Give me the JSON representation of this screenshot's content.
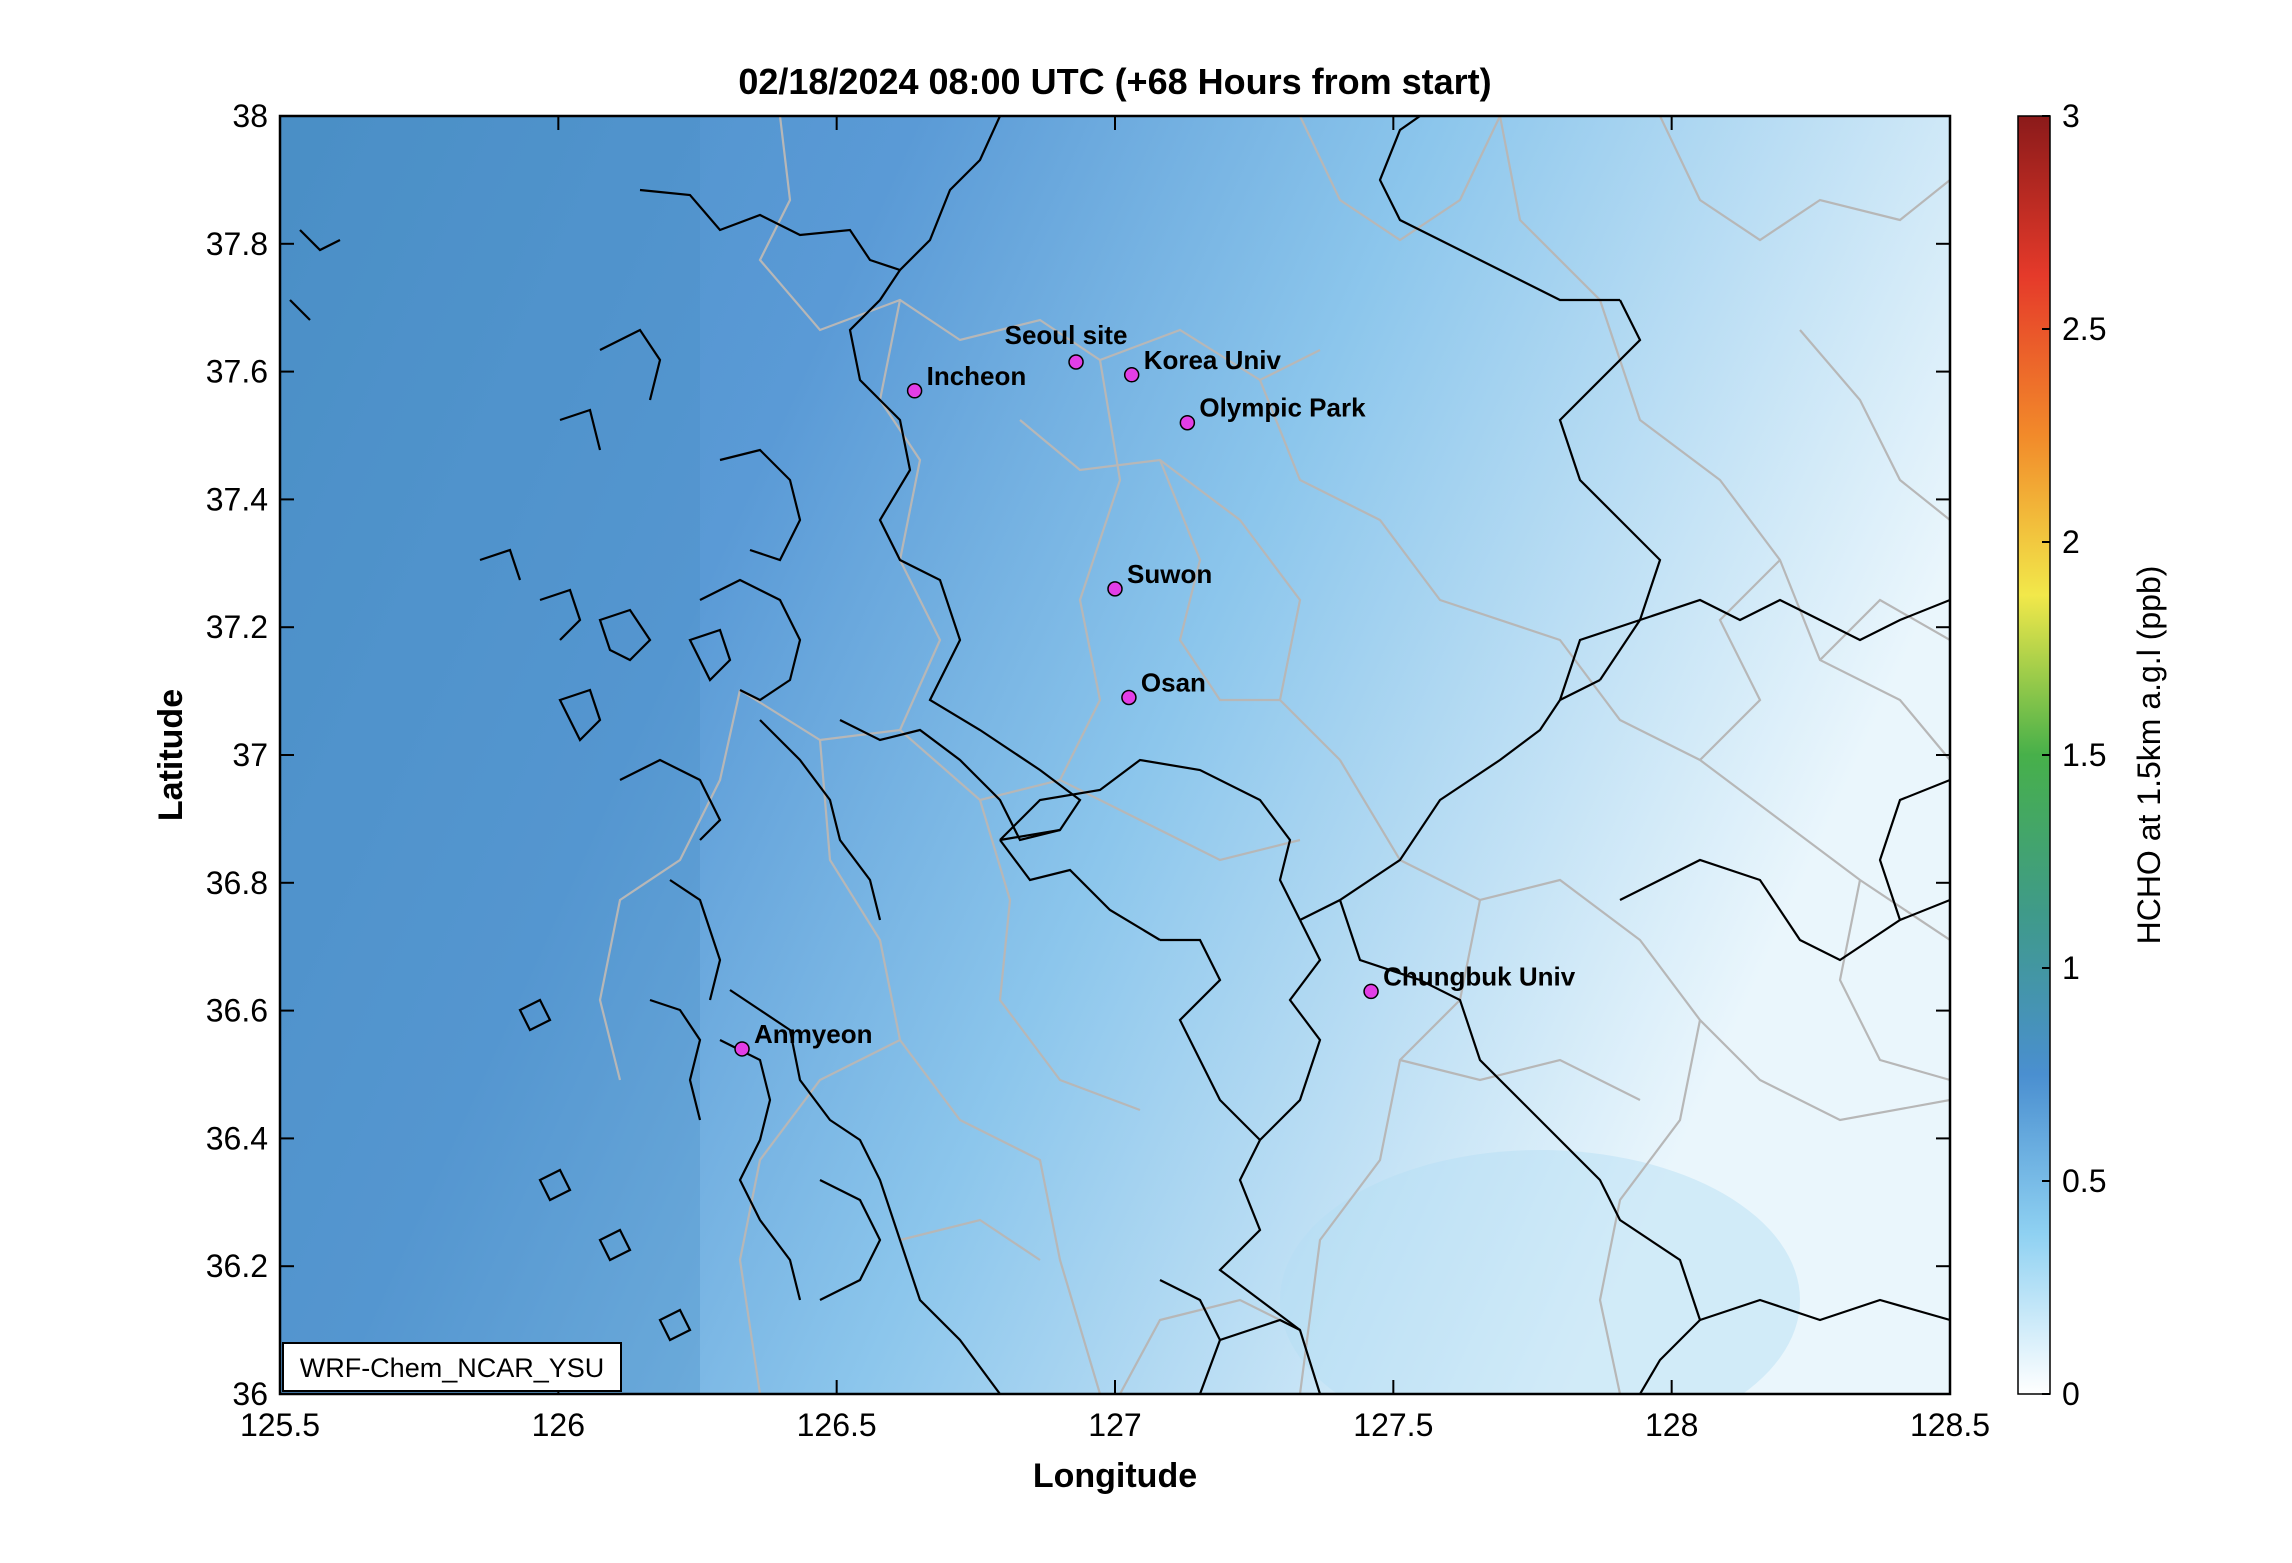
{
  "title": "02/18/2024 08:00 UTC (+68 Hours from start)",
  "model_label": "WRF-Chem_NCAR_YSU",
  "map": {
    "lon_range": [
      125.5,
      128.5
    ],
    "lat_range": [
      36,
      38
    ],
    "xlabel": "Longitude",
    "ylabel": "Latitude",
    "x_ticks": [
      125.5,
      126,
      126.5,
      127,
      127.5,
      128,
      128.5
    ],
    "x_tick_labels": [
      "125.5",
      "126",
      "126.5",
      "127",
      "127.5",
      "128",
      "128.5"
    ],
    "y_ticks": [
      36,
      36.2,
      36.4,
      36.6,
      36.8,
      37,
      37.2,
      37.4,
      37.6,
      37.8,
      38
    ],
    "y_tick_labels": [
      "36",
      "36.2",
      "36.4",
      "36.6",
      "36.8",
      "37",
      "37.2",
      "37.4",
      "37.6",
      "37.8",
      "38"
    ]
  },
  "colorbar": {
    "label": "HCHO at 1.5km a.g.l (ppb)",
    "range": [
      0,
      3
    ],
    "ticks": [
      0,
      0.5,
      1,
      1.5,
      2,
      2.5,
      3
    ],
    "tick_labels": [
      "0",
      "0.5",
      "1",
      "1.5",
      "2",
      "2.5",
      "3"
    ],
    "colors": [
      "#ffffff",
      "#8fd1f2",
      "#4a8fd0",
      "#3f9a8a",
      "#47b04a",
      "#f2e84a",
      "#f28a2a",
      "#e53a2a",
      "#8b1a1a"
    ]
  },
  "field_colors": {
    "west": "#4a8fc6",
    "coast": "#5a9ad6",
    "inland": "#8cc6ec",
    "east_light": "#eaf6fc",
    "marker": "#e23ee6"
  },
  "sites": [
    {
      "name": "Seoul site",
      "lon": 126.93,
      "lat": 37.615
    },
    {
      "name": "Korea Univ",
      "lon": 127.03,
      "lat": 37.595
    },
    {
      "name": "Incheon",
      "lon": 126.64,
      "lat": 37.57
    },
    {
      "name": "Olympic Park",
      "lon": 127.13,
      "lat": 37.52
    },
    {
      "name": "Suwon",
      "lon": 127.0,
      "lat": 37.26
    },
    {
      "name": "Osan",
      "lon": 127.025,
      "lat": 37.09
    },
    {
      "name": "Chungbuk Univ",
      "lon": 127.46,
      "lat": 36.63
    },
    {
      "name": "Anmyeon",
      "lon": 126.33,
      "lat": 36.54
    }
  ]
}
